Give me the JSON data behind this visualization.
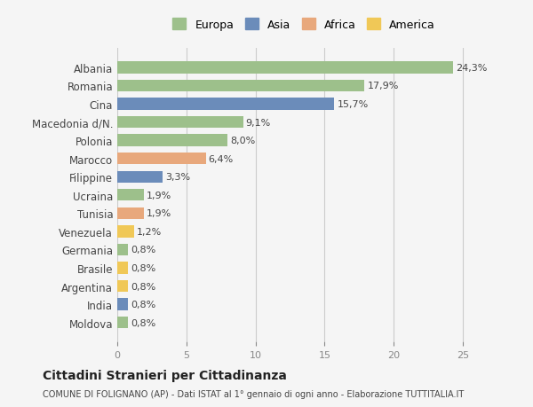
{
  "countries": [
    "Albania",
    "Romania",
    "Cina",
    "Macedonia d/N.",
    "Polonia",
    "Marocco",
    "Filippine",
    "Ucraina",
    "Tunisia",
    "Venezuela",
    "Germania",
    "Brasile",
    "Argentina",
    "India",
    "Moldova"
  ],
  "values": [
    24.3,
    17.9,
    15.7,
    9.1,
    8.0,
    6.4,
    3.3,
    1.9,
    1.9,
    1.2,
    0.8,
    0.8,
    0.8,
    0.8,
    0.8
  ],
  "labels": [
    "24,3%",
    "17,9%",
    "15,7%",
    "9,1%",
    "8,0%",
    "6,4%",
    "3,3%",
    "1,9%",
    "1,9%",
    "1,2%",
    "0,8%",
    "0,8%",
    "0,8%",
    "0,8%",
    "0,8%"
  ],
  "continents": [
    "Europa",
    "Europa",
    "Asia",
    "Europa",
    "Europa",
    "Africa",
    "Asia",
    "Europa",
    "Africa",
    "America",
    "Europa",
    "America",
    "America",
    "Asia",
    "Europa"
  ],
  "colors": {
    "Europa": "#9dc08b",
    "Asia": "#6b8cba",
    "Africa": "#e8a87c",
    "America": "#f0c857"
  },
  "legend_colors": {
    "Europa": "#9dc08b",
    "Asia": "#6b8cba",
    "Africa": "#e8a87c",
    "America": "#f0c857"
  },
  "background_color": "#f5f5f5",
  "xlim": [
    0,
    27
  ],
  "title": "Cittadini Stranieri per Cittadinanza",
  "subtitle": "COMUNE DI FOLIGNANO (AP) - Dati ISTAT al 1° gennaio di ogni anno - Elaborazione TUTTITALIA.IT",
  "grid_color": "#cccccc"
}
